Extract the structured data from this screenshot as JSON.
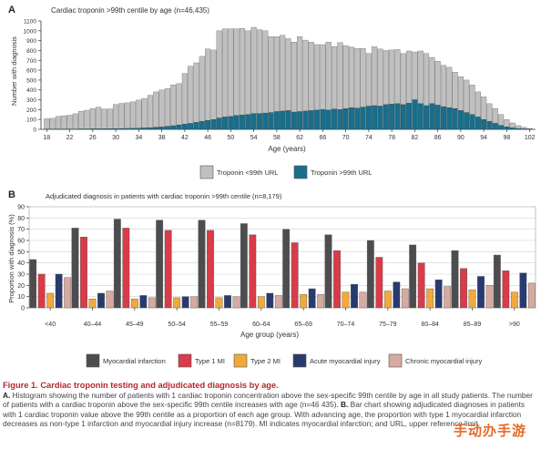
{
  "panel_a": {
    "label": "A",
    "title": "Cardiac troponin >99th centile by age (n=46,435)",
    "ylabel": "Number with diagnosis",
    "xlabel": "Age (years)",
    "legend": [
      "Troponin <99th URL",
      "Troponin >99th URL"
    ]
  },
  "panel_b": {
    "label": "B",
    "title": "Adjudicated diagnosis in patients with cardiac troponin >99th centile (n=8,179)",
    "ylabel": "Proportion with diagnosis (%)",
    "xlabel": "Age group (years)",
    "legend": [
      "Myocardial infarction",
      "Type 1 MI",
      "Type 2 MI",
      "Acute myocardial injury",
      "Chronic myocardial injury"
    ]
  },
  "caption": {
    "title": "Figure 1. Cardiac troponin testing and adjudicated diagnosis by age.",
    "a_label": "A.",
    "a_text": "Histogram showing the number of patients with 1 cardiac troponin concentration above the sex-specific 99th centile by age in all study patients. The number of patients with a cardiac troponin above the sex-specific 99th centile increases with age (n=46 435).",
    "b_label": "B.",
    "b_text": "Bar chart showing adjudicated diagnoses in patients with 1 cardiac troponin value above the 99th centile as a proportion of each age group. With advancing age, the proportion with type 1 myocardial infarction decreases as non-type 1 infarction and myocardial injury increase (n=8179). MI indicates myocardial infarction; and URL, upper reference limit."
  },
  "watermark": "手动办手游",
  "chart_data": [
    {
      "type": "bar",
      "stacked": true,
      "title": "Cardiac troponin >99th centile by age (n=46,435)",
      "xlabel": "Age (years)",
      "ylabel": "Number with diagnosis",
      "ylim": [
        0,
        1100
      ],
      "yticks": [
        0,
        100,
        200,
        300,
        400,
        500,
        600,
        700,
        800,
        900,
        1000,
        1100
      ],
      "xlim": [
        17,
        103
      ],
      "xticks": [
        18,
        22,
        26,
        30,
        34,
        38,
        42,
        46,
        50,
        54,
        58,
        62,
        66,
        70,
        74,
        78,
        82,
        86,
        90,
        94,
        98,
        102
      ],
      "legend_position": "bottom",
      "grid": false,
      "x": [
        18,
        19,
        20,
        21,
        22,
        23,
        24,
        25,
        26,
        27,
        28,
        29,
        30,
        31,
        32,
        33,
        34,
        35,
        36,
        37,
        38,
        39,
        40,
        41,
        42,
        43,
        44,
        45,
        46,
        47,
        48,
        49,
        50,
        51,
        52,
        53,
        54,
        55,
        56,
        57,
        58,
        59,
        60,
        61,
        62,
        63,
        64,
        65,
        66,
        67,
        68,
        69,
        70,
        71,
        72,
        73,
        74,
        75,
        76,
        77,
        78,
        79,
        80,
        81,
        82,
        83,
        84,
        85,
        86,
        87,
        88,
        89,
        90,
        91,
        92,
        93,
        94,
        95,
        96,
        97,
        98,
        99,
        100,
        101,
        102
      ],
      "series": [
        {
          "name": "Troponin >99th URL",
          "color": "#1a6e8c",
          "values": [
            2,
            2,
            2,
            3,
            3,
            3,
            4,
            4,
            5,
            5,
            6,
            7,
            7,
            8,
            9,
            10,
            12,
            14,
            16,
            20,
            24,
            30,
            36,
            44,
            52,
            60,
            70,
            80,
            90,
            100,
            115,
            125,
            130,
            140,
            145,
            150,
            160,
            160,
            165,
            170,
            180,
            185,
            190,
            175,
            180,
            185,
            190,
            195,
            200,
            195,
            205,
            200,
            210,
            220,
            215,
            225,
            235,
            240,
            235,
            250,
            255,
            260,
            250,
            265,
            300,
            260,
            240,
            260,
            245,
            230,
            220,
            210,
            190,
            170,
            150,
            125,
            100,
            80,
            60,
            40,
            25,
            15,
            8,
            5,
            2
          ]
        },
        {
          "name": "Troponin <99th URL",
          "color": "#c0c0c0",
          "values": [
            105,
            110,
            130,
            135,
            140,
            155,
            180,
            190,
            205,
            220,
            200,
            200,
            245,
            255,
            260,
            270,
            285,
            300,
            330,
            360,
            375,
            385,
            415,
            420,
            515,
            580,
            605,
            660,
            725,
            705,
            885,
            895,
            890,
            880,
            880,
            850,
            875,
            850,
            835,
            770,
            760,
            770,
            730,
            710,
            760,
            720,
            695,
            665,
            660,
            690,
            635,
            680,
            640,
            615,
            605,
            595,
            535,
            600,
            580,
            550,
            550,
            550,
            520,
            530,
            485,
            535,
            530,
            470,
            445,
            420,
            410,
            370,
            345,
            330,
            300,
            255,
            230,
            180,
            150,
            110,
            75,
            50,
            30,
            15,
            5
          ]
        }
      ]
    },
    {
      "type": "bar",
      "title": "Adjudicated diagnosis in patients with cardiac troponin >99th centile (n=8,179)",
      "xlabel": "Age group (years)",
      "ylabel": "Proportion with diagnosis (%)",
      "ylim": [
        0,
        90
      ],
      "yticks": [
        0,
        10,
        20,
        30,
        40,
        50,
        60,
        70,
        80,
        90
      ],
      "grid": true,
      "legend_position": "bottom",
      "categories": [
        "<40",
        "40–44",
        "45–49",
        "50–54",
        "55–59",
        "60–64",
        "65–69",
        "70–74",
        "75–79",
        "80–84",
        "85–89",
        ">90"
      ],
      "series": [
        {
          "name": "Myocardial infarction",
          "color": "#4d4d4f",
          "values": [
            43,
            71,
            79,
            78,
            78,
            75,
            70,
            65,
            60,
            56,
            51,
            47
          ]
        },
        {
          "name": "Type 1 MI",
          "color": "#d93b48",
          "values": [
            30,
            63,
            71,
            69,
            69,
            65,
            58,
            51,
            45,
            40,
            35,
            33
          ]
        },
        {
          "name": "Type 2 MI",
          "color": "#f2a93b",
          "values": [
            13,
            8,
            8,
            9,
            9,
            10,
            12,
            14,
            15,
            17,
            16,
            14
          ]
        },
        {
          "name": "Acute myocardial injury",
          "color": "#283a6e",
          "values": [
            30,
            13,
            11,
            10,
            11,
            13,
            17,
            21,
            23,
            25,
            28,
            31
          ]
        },
        {
          "name": "Chronic myocardial injury",
          "color": "#d6aaa0",
          "values": [
            27,
            15,
            9,
            10,
            10,
            11,
            12,
            14,
            17,
            19,
            20,
            22
          ]
        }
      ]
    }
  ]
}
